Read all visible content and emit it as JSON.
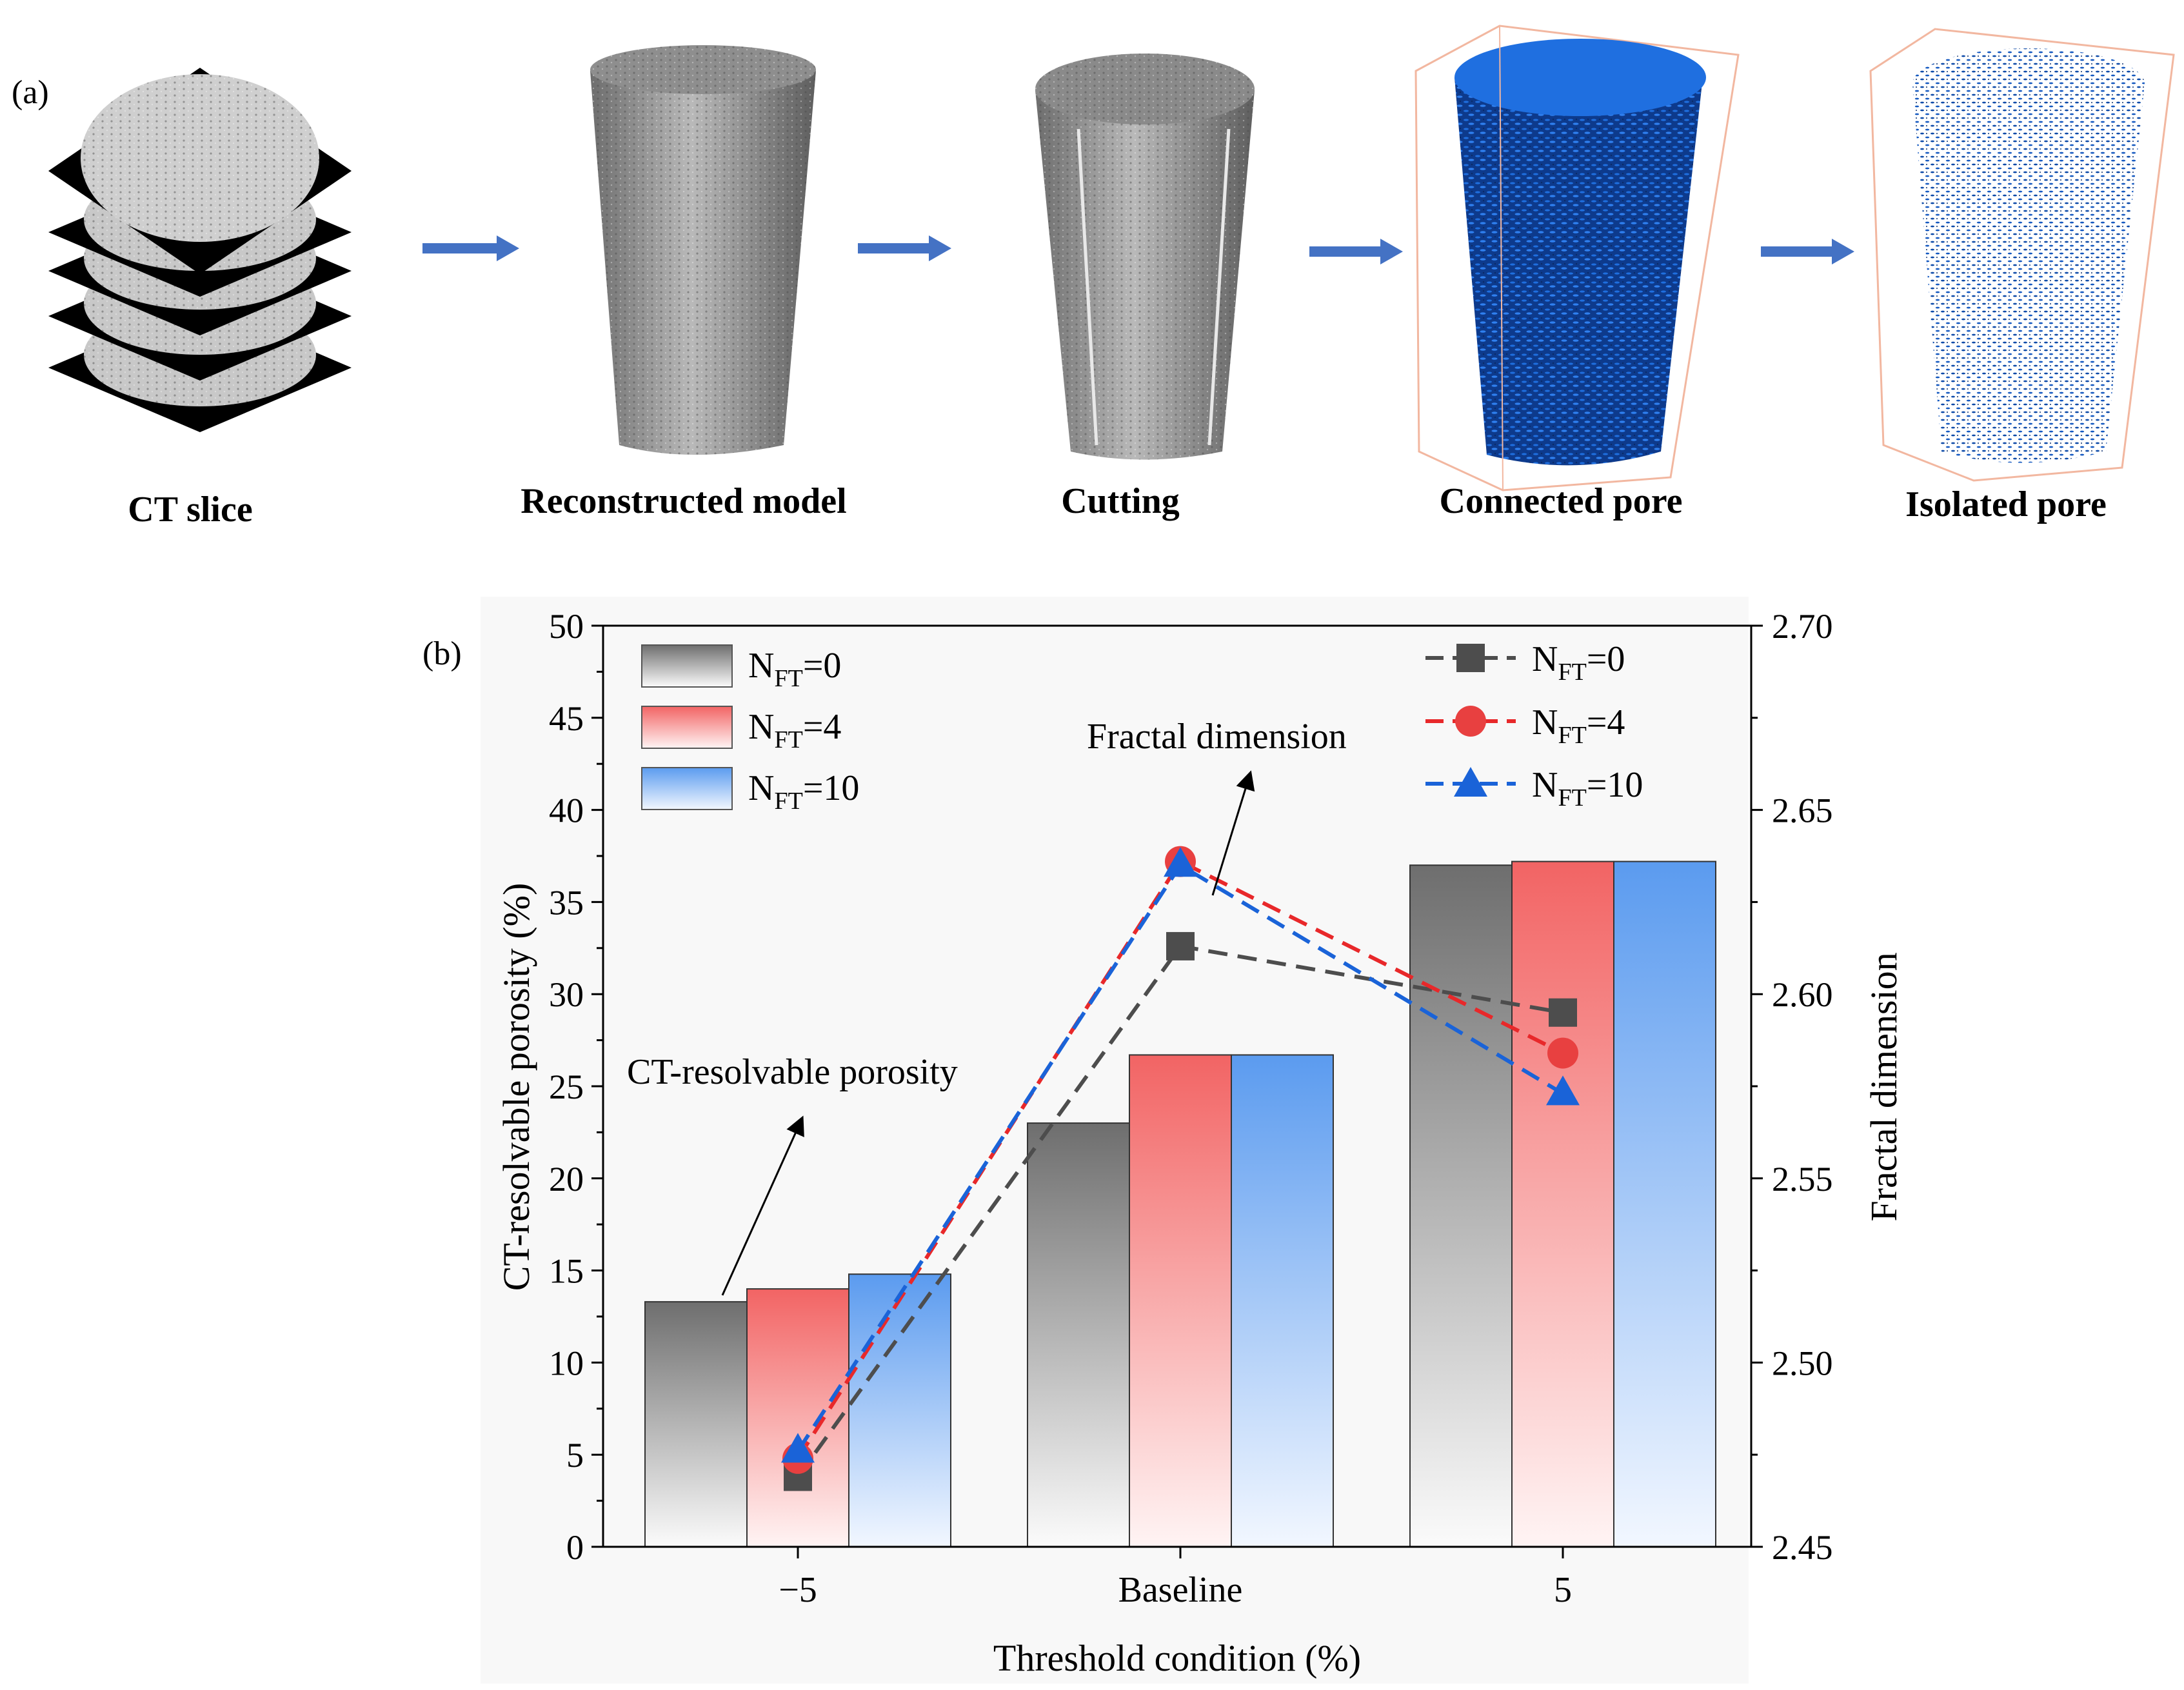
{
  "panel_a": {
    "label": "(a)",
    "steps": [
      {
        "label": "CT slice",
        "icon": "ct-slice-stack-image"
      },
      {
        "label": "Reconstructed model",
        "icon": "reconstructed-cylinder-image"
      },
      {
        "label": "Cutting",
        "icon": "cut-cylinder-image"
      },
      {
        "label": "Connected pore",
        "icon": "connected-pore-render-image"
      },
      {
        "label": "Isolated pore",
        "icon": "isolated-pore-render-image"
      }
    ],
    "arrow_color": "#4472c4"
  },
  "chart_data": {
    "panel_label": "(b)",
    "type": "bar+line",
    "categories": [
      "−5",
      "Baseline",
      "5"
    ],
    "xlabel": "Threshold condition (%)",
    "ylabel_left": "CT-resolvable porosity (%)",
    "ylabel_right": "Fractal dimension",
    "ylim_left": [
      0,
      50
    ],
    "ylim_right": [
      2.45,
      2.7
    ],
    "yticks_left": [
      "0",
      "5",
      "10",
      "15",
      "20",
      "25",
      "30",
      "35",
      "40",
      "45",
      "50"
    ],
    "yticks_right": [
      "2.45",
      "2.50",
      "2.55",
      "2.60",
      "2.65",
      "2.70"
    ],
    "bar_series": [
      {
        "name": "N_FT=0",
        "name_main": "N",
        "name_sub": "FT",
        "name_tail": "=0",
        "values": [
          13.3,
          23.0,
          37.0
        ],
        "color": "#6e6e6e"
      },
      {
        "name": "N_FT=4",
        "name_main": "N",
        "name_sub": "FT",
        "name_tail": "=4",
        "values": [
          14.0,
          26.7,
          37.2
        ],
        "color": "#f06060"
      },
      {
        "name": "N_FT=10",
        "name_main": "N",
        "name_sub": "FT",
        "name_tail": "=10",
        "values": [
          14.8,
          26.7,
          37.2
        ],
        "color": "#5b9bef"
      }
    ],
    "line_series": [
      {
        "name": "N_FT=0",
        "name_main": "N",
        "name_sub": "FT",
        "name_tail": "=0",
        "values": [
          2.469,
          2.613,
          2.595
        ],
        "color": "#4d4d4d",
        "marker": "square"
      },
      {
        "name": "N_FT=4",
        "name_main": "N",
        "name_sub": "FT",
        "name_tail": "=4",
        "values": [
          2.474,
          2.636,
          2.584
        ],
        "color": "#e8282a",
        "marker": "circle"
      },
      {
        "name": "N_FT=10",
        "name_main": "N",
        "name_sub": "FT",
        "name_tail": "=10",
        "values": [
          2.476,
          2.635,
          2.573
        ],
        "color": "#1a63d8",
        "marker": "triangle"
      }
    ],
    "annotations": [
      {
        "text": "CT-resolvable porosity"
      },
      {
        "text": "Fractal dimension"
      }
    ],
    "legend_left_position": "top-left",
    "legend_right_position": "top-right",
    "grid": false
  }
}
